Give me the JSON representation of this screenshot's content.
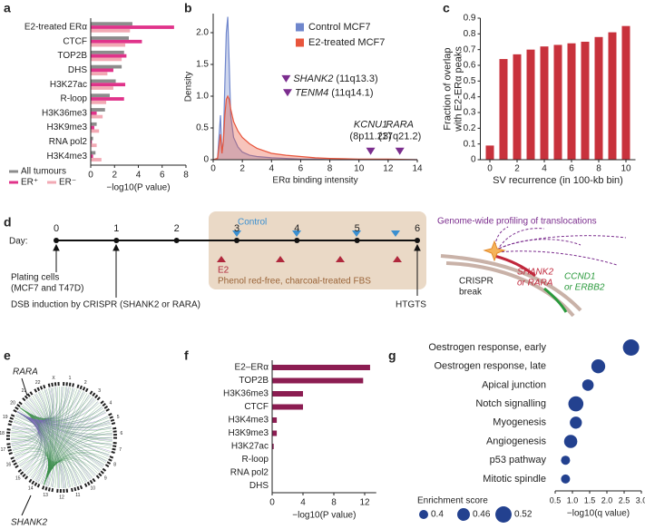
{
  "panels": [
    "a",
    "b",
    "c",
    "d",
    "e",
    "f",
    "g"
  ],
  "chart_data": [
    {
      "type": "hbar",
      "categories": [
        "E2-treated ERα",
        "CTCF",
        "TOP2B",
        "DHS",
        "H3K27ac",
        "R-loop",
        "H3K36me3",
        "H3K9me3",
        "RNA pol2",
        "H3K4me3"
      ],
      "series": [
        {
          "name": "All tumours",
          "color": "#8c8c8c",
          "values": [
            3.5,
            3.2,
            2.8,
            2.6,
            2.1,
            1.6,
            1.2,
            0.5,
            0.2,
            0.4
          ]
        },
        {
          "name": "ER⁺",
          "color": "#e0338a",
          "values": [
            7.0,
            4.3,
            3.0,
            1.9,
            2.9,
            2.8,
            0.5,
            0.3,
            0.1,
            0.2
          ]
        },
        {
          "name": "ER⁻",
          "color": "#f2a9b4",
          "values": [
            3.3,
            2.9,
            2.6,
            1.4,
            1.9,
            1.3,
            1.0,
            0.7,
            0.5,
            0.9
          ]
        }
      ],
      "xlim": [
        0,
        8
      ],
      "xticks": [
        0,
        2,
        4,
        6,
        8
      ],
      "xlabel": "−log10(P value)"
    },
    {
      "type": "density",
      "x": [
        0,
        0.3,
        0.5,
        0.6,
        0.7,
        0.8,
        0.9,
        1,
        1.1,
        1.2,
        1.4,
        1.7,
        2,
        2.5,
        3,
        4,
        5,
        6,
        7,
        8,
        10,
        12,
        14
      ],
      "series": [
        {
          "name": "Control MCF7",
          "color": "#6f86cc",
          "values": [
            0,
            0.02,
            0.7,
            0.1,
            0.3,
            1.2,
            2.0,
            2.25,
            1.5,
            0.7,
            0.35,
            0.2,
            0.12,
            0.07,
            0.05,
            0.03,
            0.02,
            0.01,
            0.01,
            0,
            0,
            0,
            0
          ]
        },
        {
          "name": "E2-treated MCF7",
          "color": "#e8553c",
          "values": [
            0,
            0.02,
            0.4,
            0.1,
            0.3,
            0.7,
            0.95,
            1.0,
            0.95,
            0.8,
            0.6,
            0.45,
            0.35,
            0.25,
            0.18,
            0.1,
            0.07,
            0.05,
            0.03,
            0.02,
            0.01,
            0.01,
            0
          ]
        }
      ],
      "xlim": [
        0,
        14
      ],
      "xticks": [
        0,
        2,
        4,
        6,
        8,
        10,
        12,
        14
      ],
      "ylim": [
        0,
        2.3
      ],
      "yticks": [
        0,
        0.5,
        {
          "value": 1,
          "label": "1.0"
        },
        1.5,
        {
          "value": 2,
          "label": "2.0"
        }
      ],
      "xlabel": "ERα binding intensity",
      "ylabel": "Density",
      "annotations": [
        {
          "gene": "SHANK2",
          "band": "(11q13.3)",
          "x": 5.0,
          "y": 1.23
        },
        {
          "gene": "TENM4",
          "band": "(11q14.1)",
          "x": 5.1,
          "y": 1.01
        },
        {
          "gene": "KCNU1",
          "band": "(8p11.23)",
          "x": 10.8,
          "y": 0.09
        },
        {
          "gene": "RARA",
          "band": "(17q21.2)",
          "x": 12.8,
          "y": 0.09
        }
      ],
      "annotation_color": "#7b2d8e"
    },
    {
      "type": "vbar",
      "x": [
        0,
        1,
        2,
        3,
        4,
        5,
        6,
        7,
        8,
        9,
        10
      ],
      "values": [
        0.09,
        0.64,
        0.67,
        0.7,
        0.72,
        0.73,
        0.74,
        0.75,
        0.78,
        0.81,
        0.85
      ],
      "color": "#c8323c",
      "xlim": [
        -0.7,
        10.7
      ],
      "xticks": [
        0,
        2,
        4,
        6,
        8,
        10
      ],
      "ylim": [
        0,
        0.9
      ],
      "yticks": [
        0,
        0.1,
        0.2,
        0.3,
        0.4,
        0.5,
        0.6,
        0.7,
        0.8,
        0.9
      ],
      "xlabel": "SV recurrence (in 100-kb bin)",
      "ylabel": [
        "Fraction of overlap",
        "with E2-ERα peaks"
      ]
    },
    {
      "type": "hbar",
      "categories": [
        "E2–ERα",
        "TOP2B",
        "H3K36me3",
        "CTCF",
        "H3K4me3",
        "H3K9me3",
        "H3K27ac",
        "R-loop",
        "RNA pol2",
        "DHS"
      ],
      "values": [
        12.7,
        11.8,
        4.0,
        4.0,
        0.6,
        0.6,
        0.2,
        0,
        0,
        0
      ],
      "color": "#8c1d52",
      "xlim": [
        0,
        13.5
      ],
      "xticks": [
        0,
        4,
        8,
        12
      ],
      "xlabel": "−log10(P value)"
    },
    {
      "type": "dot",
      "categories": [
        "Oestrogen response, early",
        "Oestrogen response, late",
        "Apical junction",
        "Notch signalling",
        "Myogenesis",
        "Angiogenesis",
        "p53 pathway",
        "Mitotic spindle"
      ],
      "values": [
        2.7,
        1.75,
        1.45,
        1.1,
        1.1,
        0.95,
        0.8,
        0.8
      ],
      "sizes": [
        0.52,
        0.48,
        0.44,
        0.5,
        0.45,
        0.47,
        0.4,
        0.4
      ],
      "color": "#23418f",
      "xlim": [
        0.5,
        3.0
      ],
      "xticks": [
        0.5,
        {
          "value": 1,
          "label": "1.0"
        },
        1.5,
        {
          "value": 2,
          "label": "2.0"
        },
        2.5,
        {
          "value": 3,
          "label": "3.0"
        }
      ],
      "xlabel": "−log10(q value)",
      "size_legend": {
        "title": "Enrichment score",
        "values": [
          0.4,
          0.46,
          0.52
        ]
      }
    }
  ],
  "diagram_d": {
    "day_label": "Day:",
    "days": [
      0,
      1,
      2,
      3,
      4,
      5,
      6
    ],
    "control": "Control",
    "e2": "E2",
    "medium": "Phenol red-free, charcoal-treated FBS",
    "plating": [
      "Plating cells",
      "(MCF7 and T47D)"
    ],
    "dsb": "DSB induction by CRISPR (SHANK2 or RARA)",
    "htgts": "HTGTS",
    "profiling": "Genome-wide profiling of translocations",
    "crispr": [
      "CRISPR",
      "break"
    ],
    "bait": [
      "SHANK2",
      "or RARA"
    ],
    "prey": [
      "CCND1",
      "or ERBB2"
    ]
  },
  "circos_e": {
    "rara": "RARA",
    "shank2": "SHANK2",
    "chromosomes": [
      "1",
      "2",
      "3",
      "4",
      "5",
      "6",
      "7",
      "8",
      "9",
      "10",
      "11",
      "12",
      "13",
      "14",
      "15",
      "16",
      "17",
      "18",
      "19",
      "20",
      "21",
      "22",
      "X"
    ]
  }
}
